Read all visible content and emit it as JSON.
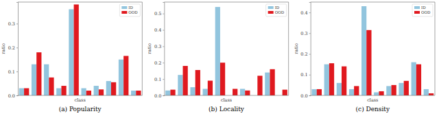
{
  "chart_data": [
    {
      "type": "bar",
      "title": "(a) Popularity",
      "x_label": "class",
      "y_label": "ratio",
      "categories": [
        null,
        null,
        null,
        null,
        null,
        null,
        null,
        null,
        null,
        null
      ],
      "series": [
        {
          "name": "ID",
          "color": "#92c5de",
          "values": [
            0.03,
            0.13,
            0.13,
            0.03,
            0.36,
            0.03,
            0.04,
            0.06,
            0.15,
            0.02
          ]
        },
        {
          "name": "OOD",
          "color": "#e0191f",
          "values": [
            0.03,
            0.18,
            0.075,
            0.04,
            0.38,
            0.02,
            0.025,
            0.055,
            0.165,
            0.02
          ]
        }
      ],
      "ylim": [
        0,
        0.39
      ],
      "yticks": [
        {
          "value": 0,
          "label": "0.0"
        },
        0.1,
        0.2,
        0.3
      ],
      "legend": "upper right",
      "tick_labels": "y",
      "grid": false
    },
    {
      "type": "bar",
      "title": "(b) Locality",
      "x_label": "class",
      "y_label": "ratio",
      "categories": [
        null,
        null,
        null,
        null,
        null,
        null,
        null,
        null,
        null,
        null
      ],
      "series": [
        {
          "name": "ID",
          "color": "#92c5de",
          "values": [
            0.03,
            0.125,
            0.05,
            0.04,
            0.54,
            0,
            0.04,
            0,
            0.14,
            0
          ]
        },
        {
          "name": "OOD",
          "color": "#e0191f",
          "values": [
            0.035,
            0.18,
            0.155,
            0.09,
            0.2,
            0.04,
            0.03,
            0.12,
            0.16,
            0.035
          ]
        }
      ],
      "ylim": [
        0,
        0.57
      ],
      "yticks": [
        {
          "value": 0,
          "label": "0.0"
        },
        0.1,
        0.2,
        0.3,
        0.4,
        0.5
      ],
      "legend": "upper right",
      "tick_labels": "y",
      "grid": false
    },
    {
      "type": "bar",
      "title": "(c) Density",
      "x_label": "class",
      "y_label": "ratio",
      "categories": [
        null,
        null,
        null,
        null,
        null,
        null,
        null,
        null,
        null,
        null
      ],
      "series": [
        {
          "name": "ID",
          "color": "#92c5de",
          "values": [
            0.03,
            0.15,
            0.06,
            0.03,
            0.43,
            0.015,
            0.045,
            0.06,
            0.16,
            0.03
          ]
        },
        {
          "name": "OOD",
          "color": "#e0191f",
          "values": [
            0.03,
            0.155,
            0.14,
            0.045,
            0.315,
            0.02,
            0.05,
            0.07,
            0.15,
            0.01
          ]
        }
      ],
      "ylim": [
        0,
        0.45
      ],
      "yticks": [
        {
          "value": 0,
          "label": "0.0"
        },
        0.1,
        0.2,
        0.3,
        0.4
      ],
      "legend": "upper right",
      "tick_labels": "y",
      "grid": false
    }
  ]
}
